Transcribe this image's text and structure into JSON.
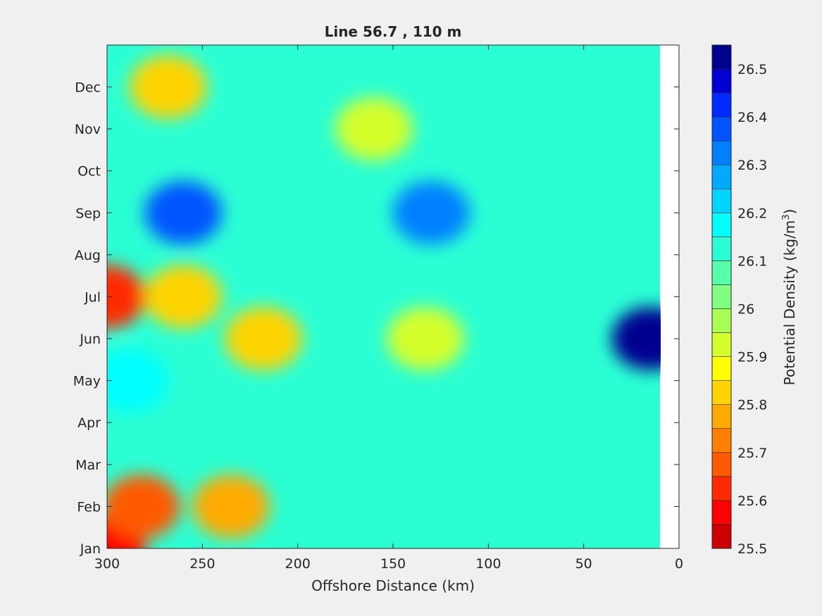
{
  "chart_data": {
    "type": "heatmap",
    "subtype": "filled-contour",
    "title": "Line 56.7 , 110 m",
    "xlabel": "Offshore Distance (km)",
    "ylabel": "",
    "xlim": [
      300,
      0
    ],
    "x_reversed": true,
    "x_ticks": [
      300,
      250,
      200,
      150,
      100,
      50,
      0
    ],
    "y_ticks": [
      "Jan",
      "Feb",
      "Mar",
      "Apr",
      "May",
      "Jun",
      "Jul",
      "Aug",
      "Sep",
      "Oct",
      "Nov",
      "Dec"
    ],
    "data_extent_km": [
      300,
      10
    ],
    "colorbar": {
      "label": "Potential Density (kg/m",
      "label_superscript": "3",
      "label_suffix": ")",
      "range": [
        25.5,
        26.55
      ],
      "ticks": [
        25.5,
        25.6,
        25.7,
        25.8,
        25.9,
        26,
        26.1,
        26.2,
        26.3,
        26.4,
        26.5
      ],
      "tick_labels": [
        "25.5",
        "25.6",
        "25.7",
        "25.8",
        "25.9",
        "26",
        "26.1",
        "26.2",
        "26.3",
        "26.4",
        "26.5"
      ],
      "step": 0.05,
      "colors": [
        "#cc0000",
        "#ff0000",
        "#ff2a00",
        "#ff5a00",
        "#ff8000",
        "#ffaa00",
        "#ffd400",
        "#ffff00",
        "#d4ff2a",
        "#aaff55",
        "#80ff80",
        "#55ffaa",
        "#2affd4",
        "#00ffff",
        "#00d4ff",
        "#00aaff",
        "#0080ff",
        "#0055ff",
        "#002aff",
        "#0000d4",
        "#00008f"
      ]
    },
    "features": [
      {
        "x": 300,
        "y": "Jan",
        "value": 25.55
      },
      {
        "x": 235,
        "y": "Feb",
        "value": 25.75
      },
      {
        "x": 282,
        "y": "Feb",
        "value": 25.7
      },
      {
        "x": 300,
        "y": "Jul",
        "value": 25.65
      },
      {
        "x": 218,
        "y": "Jun",
        "value": 25.8
      },
      {
        "x": 260,
        "y": "Jul",
        "value": 25.8
      },
      {
        "x": 268,
        "y": "Dec",
        "value": 25.8
      },
      {
        "x": 133,
        "y": "Jun",
        "value": 25.95
      },
      {
        "x": 288,
        "y": "May",
        "value": 26.2
      },
      {
        "x": 260,
        "y": "Sep",
        "value": 26.35
      },
      {
        "x": 130,
        "y": "Sep",
        "value": 26.3
      },
      {
        "x": 15,
        "y": "Jun",
        "value": 26.5
      },
      {
        "x": 160,
        "y": "Nov",
        "value": 25.95
      }
    ]
  }
}
